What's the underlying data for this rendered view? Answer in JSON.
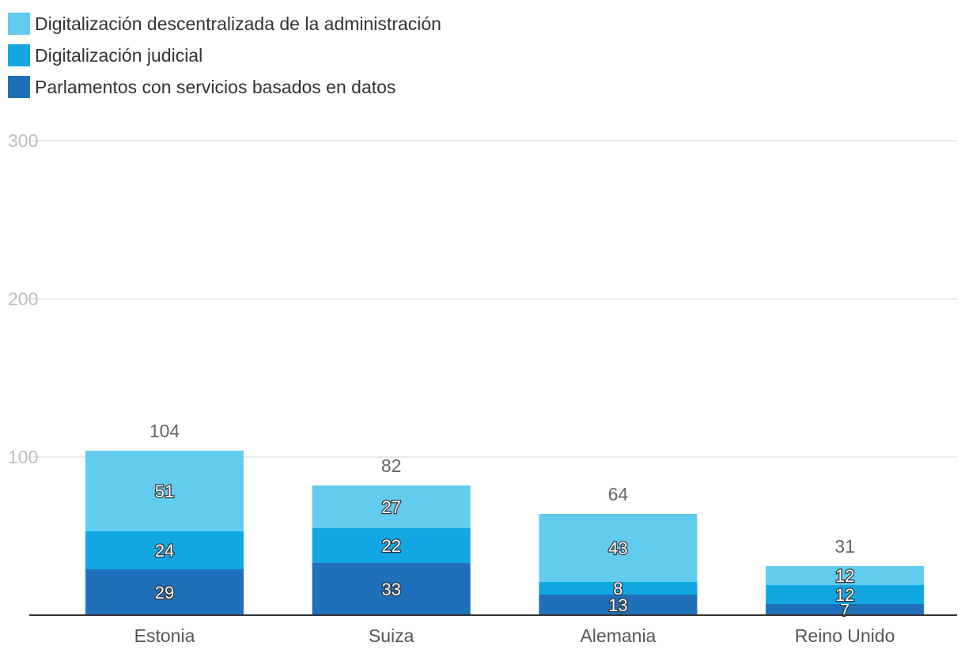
{
  "chart_data": {
    "type": "bar",
    "stacked": true,
    "categories": [
      "Estonia",
      "Suiza",
      "Alemania",
      "Reino Unido"
    ],
    "series": [
      {
        "name": "Parlamentos con servicios basados en datos",
        "color": "#1f6fba",
        "values": [
          29,
          33,
          13,
          7
        ]
      },
      {
        "name": "Digitalización judicial",
        "color": "#12a7e2",
        "values": [
          24,
          22,
          8,
          12
        ]
      },
      {
        "name": "Digitalización descentralizada de la administración",
        "color": "#62ccee",
        "values": [
          51,
          27,
          43,
          12
        ]
      }
    ],
    "totals": [
      104,
      82,
      64,
      31
    ],
    "yticks": [
      100,
      200,
      300
    ],
    "ylim": [
      0,
      300
    ],
    "grid": true,
    "legend_position": "top-left"
  }
}
